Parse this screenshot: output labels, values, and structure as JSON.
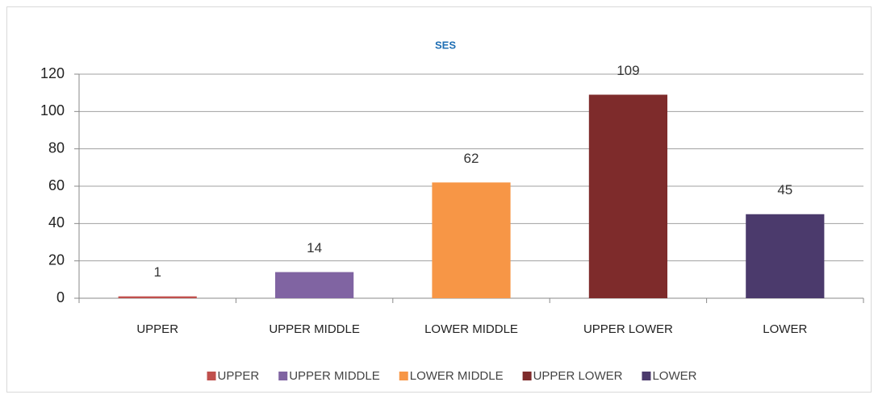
{
  "chart_data": {
    "type": "bar",
    "title": "SES",
    "categories": [
      "UPPER",
      "UPPER MIDDLE",
      "LOWER MIDDLE",
      "UPPER LOWER",
      "LOWER"
    ],
    "values": [
      1,
      14,
      62,
      109,
      45
    ],
    "colors": [
      "#c0504d",
      "#8064a2",
      "#f79646",
      "#7e2b2b",
      "#4b3a6c"
    ],
    "ylim": [
      0,
      120
    ],
    "yticks": [
      0,
      20,
      40,
      60,
      80,
      100,
      120
    ],
    "grid": true,
    "legend": "bottom"
  }
}
